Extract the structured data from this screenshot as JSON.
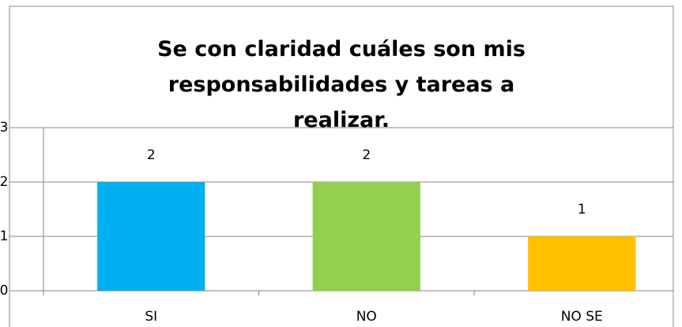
{
  "chart_data": {
    "type": "bar",
    "title": "Se con claridad cuáles son mis responsabilidades y tareas a realizar.",
    "categories": [
      "SI",
      "NO",
      "NO SE"
    ],
    "values": [
      2,
      2,
      1
    ],
    "colors": [
      "#00b0f0",
      "#92d050",
      "#ffc000"
    ],
    "ylim": [
      0,
      3
    ],
    "yticks": [
      0,
      1,
      2,
      3
    ],
    "grid": true
  }
}
